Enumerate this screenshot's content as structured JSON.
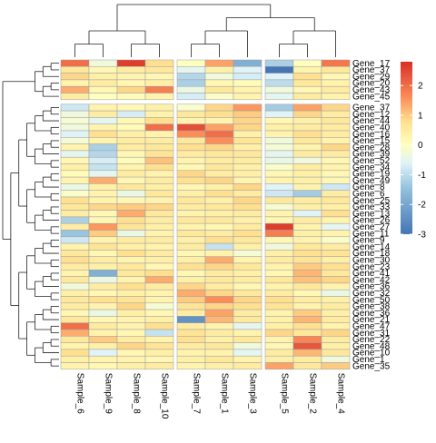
{
  "chart_data": {
    "type": "heatmap",
    "columns": [
      "Sample_6",
      "Sample_9",
      "Sample_8",
      "Sample_10",
      "Sample_7",
      "Sample_1",
      "Sample_3",
      "Sample_5",
      "Sample_2",
      "Sample_4"
    ],
    "column_groups": [
      1,
      1,
      1,
      1,
      2,
      2,
      2,
      3,
      3,
      3
    ],
    "rows": [
      "Gene_17",
      "Gene_37",
      "Gene_29",
      "Gene_20",
      "Gene_43",
      "Gene_45",
      "Gene_37",
      "Gene_12",
      "Gene_44",
      "Gene_40",
      "Gene_16",
      "Gene_15",
      "Gene_28",
      "Gene_39",
      "Gene_52",
      "Gene_34",
      "Gene_19",
      "Gene_49",
      "Gene_8",
      "Gene_6",
      "Gene_25",
      "Gene_33",
      "Gene_13",
      "Gene_26",
      "Gene_27",
      "Gene_11",
      "Gene_9",
      "Gene_14",
      "Gene_18",
      "Gene_30",
      "Gene_23",
      "Gene_41",
      "Gene_42",
      "Gene_36",
      "Gene_32",
      "Gene_50",
      "Gene_38",
      "Gene_36",
      "Gene_21",
      "Gene_47",
      "Gene_31",
      "Gene_22",
      "Gene_48",
      "Gene_10",
      "Gene_1",
      "Gene_35"
    ],
    "row_group_split_after": 6,
    "values": [
      [
        2.0,
        -0.3,
        2.6,
        0.8,
        0.0,
        1.4,
        -1.8,
        -1.2,
        0.0,
        1.9
      ],
      [
        0.6,
        0.2,
        0.5,
        0.6,
        -0.5,
        0.4,
        -0.6,
        -3.0,
        0.3,
        0.6
      ],
      [
        0.9,
        0.4,
        0.3,
        0.2,
        -1.1,
        -0.3,
        -0.7,
        -0.6,
        0.8,
        0.2
      ],
      [
        0.3,
        0.5,
        0.2,
        0.4,
        -1.2,
        0.2,
        0.1,
        -1.0,
        0.6,
        0.3
      ],
      [
        1.3,
        0.2,
        0.9,
        1.8,
        -0.4,
        0.6,
        0.3,
        -0.3,
        0.2,
        0.5
      ],
      [
        0.5,
        0.0,
        0.1,
        0.3,
        -0.7,
        -0.1,
        0.3,
        -0.5,
        0.5,
        0.3
      ],
      [
        -0.8,
        0.3,
        0.2,
        0.4,
        -0.1,
        0.9,
        1.5,
        -1.3,
        1.4,
        0.9
      ],
      [
        -0.3,
        0.5,
        -0.7,
        0.3,
        0.6,
        0.8,
        1.0,
        -0.6,
        0.9,
        0.5
      ],
      [
        -0.2,
        -0.5,
        0.2,
        0.8,
        0.3,
        0.3,
        0.9,
        0.2,
        0.4,
        0.6
      ],
      [
        -0.3,
        0.3,
        0.1,
        2.0,
        2.4,
        1.4,
        0.9,
        0.4,
        0.5,
        0.5
      ],
      [
        -0.6,
        0.8,
        0.4,
        0.3,
        1.6,
        2.0,
        0.4,
        0.3,
        0.8,
        0.5
      ],
      [
        -0.2,
        0.3,
        0.5,
        0.5,
        0.6,
        1.6,
        0.7,
        -0.3,
        0.6,
        0.3
      ],
      [
        0.3,
        -1.2,
        0.5,
        0.6,
        0.8,
        0.9,
        0.4,
        -0.2,
        0.3,
        0.9
      ],
      [
        -0.5,
        -1.1,
        0.2,
        0.7,
        0.5,
        0.6,
        0.6,
        -0.5,
        0.5,
        0.5
      ],
      [
        0.2,
        -0.7,
        0.1,
        1.1,
        0.3,
        0.5,
        0.5,
        -0.4,
        -0.3,
        0.2
      ],
      [
        0.4,
        -0.9,
        0.3,
        0.8,
        0.2,
        0.6,
        0.4,
        -0.1,
        0.5,
        0.3
      ],
      [
        0.1,
        -0.5,
        0.5,
        0.3,
        0.9,
        0.5,
        0.4,
        0.2,
        0.4,
        0.2
      ],
      [
        0.3,
        1.3,
        0.2,
        0.5,
        0.8,
        0.9,
        0.3,
        0.3,
        0.4,
        0.2
      ],
      [
        -0.4,
        0.4,
        0.6,
        0.4,
        0.2,
        0.4,
        0.9,
        -0.6,
        0.3,
        -0.8
      ],
      [
        -0.1,
        0.3,
        -0.4,
        0.6,
        0.4,
        0.8,
        0.5,
        -0.8,
        -1.3,
        0.5
      ],
      [
        0.8,
        0.3,
        0.2,
        0.3,
        0.6,
        0.4,
        0.9,
        0.6,
        0.5,
        0.6
      ],
      [
        0.6,
        0.9,
        1.0,
        0.9,
        0.5,
        0.6,
        0.8,
        -0.2,
        0.4,
        0.4
      ],
      [
        0.5,
        0.2,
        1.3,
        0.6,
        0.3,
        0.4,
        0.5,
        0.3,
        -0.6,
        0.8
      ],
      [
        -1.2,
        0.2,
        0.8,
        0.5,
        0.6,
        0.6,
        0.4,
        0.2,
        0.5,
        0.3
      ],
      [
        0.5,
        1.5,
        0.7,
        0.4,
        0.3,
        0.2,
        0.5,
        2.6,
        0.3,
        -0.5
      ],
      [
        -1.4,
        1.0,
        -0.4,
        0.3,
        0.6,
        0.5,
        0.8,
        1.8,
        0.4,
        0.3
      ],
      [
        -0.8,
        0.3,
        0.5,
        0.5,
        0.4,
        0.8,
        0.6,
        0.2,
        0.3,
        -0.1
      ],
      [
        0.3,
        0.7,
        0.4,
        0.3,
        0.5,
        -0.9,
        0.4,
        -0.3,
        0.6,
        0.5
      ],
      [
        0.6,
        0.2,
        0.8,
        0.5,
        0.2,
        0.3,
        -0.2,
        0.4,
        0.8,
        0.7
      ],
      [
        0.8,
        0.5,
        0.3,
        0.4,
        0.4,
        1.3,
        0.3,
        0.5,
        0.7,
        0.4
      ],
      [
        0.5,
        0.4,
        0.6,
        0.2,
        0.8,
        0.9,
        0.6,
        0.3,
        1.0,
        0.8
      ],
      [
        0.3,
        -1.8,
        0.6,
        0.8,
        0.2,
        0.5,
        0.4,
        0.2,
        1.2,
        0.6
      ],
      [
        0.6,
        -0.4,
        0.3,
        1.3,
        0.4,
        0.6,
        0.5,
        0.6,
        1.1,
        0.9
      ],
      [
        -0.3,
        0.5,
        0.8,
        0.5,
        0.9,
        0.5,
        0.2,
        0.3,
        0.6,
        0.3
      ],
      [
        0.4,
        0.2,
        0.4,
        0.3,
        1.3,
        0.9,
        0.6,
        0.5,
        0.2,
        -0.4
      ],
      [
        0.6,
        0.8,
        0.7,
        0.3,
        1.0,
        1.6,
        0.9,
        0.8,
        0.5,
        0.4
      ],
      [
        0.5,
        0.3,
        0.9,
        -0.2,
        0.7,
        0.9,
        0.8,
        0.7,
        0.3,
        0.5
      ],
      [
        0.2,
        -0.4,
        0.4,
        0.2,
        0.5,
        1.4,
        0.5,
        0.3,
        1.0,
        0.4
      ],
      [
        0.6,
        0.2,
        0.3,
        0.4,
        -2.4,
        1.2,
        0.6,
        0.4,
        1.2,
        0.5
      ],
      [
        2.0,
        0.5,
        0.3,
        0.8,
        0.5,
        0.3,
        -0.5,
        0.4,
        0.8,
        0.3
      ],
      [
        1.3,
        0.3,
        0.2,
        -0.9,
        0.7,
        0.5,
        0.3,
        0.9,
        0.6,
        0.9
      ],
      [
        0.6,
        1.0,
        0.5,
        0.3,
        0.8,
        0.4,
        0.6,
        0.3,
        1.7,
        0.5
      ],
      [
        0.3,
        0.4,
        0.9,
        0.7,
        0.5,
        0.6,
        -0.3,
        0.2,
        2.3,
        0.4
      ],
      [
        0.8,
        -0.6,
        0.2,
        0.4,
        0.3,
        0.3,
        -0.5,
        0.5,
        1.2,
        0.6
      ],
      [
        0.4,
        0.3,
        0.3,
        0.2,
        0.4,
        0.6,
        0.3,
        0.4,
        0.5,
        -0.3
      ],
      [
        0.3,
        0.2,
        0.4,
        0.5,
        0.3,
        0.4,
        0.5,
        1.4,
        0.6,
        1.0
      ]
    ],
    "color_scale": {
      "min": -3,
      "max": 2.8,
      "stops": [
        {
          "value": -3,
          "color": "#4575b4"
        },
        {
          "value": -1.5,
          "color": "#91bfdb"
        },
        {
          "value": -0.6,
          "color": "#e0f3f8"
        },
        {
          "value": 0,
          "color": "#ffffbf"
        },
        {
          "value": 0.8,
          "color": "#fee090"
        },
        {
          "value": 1.6,
          "color": "#fc8d59"
        },
        {
          "value": 2.8,
          "color": "#d73027"
        }
      ]
    },
    "legend": {
      "ticks": [
        2,
        1,
        0,
        -1,
        -2,
        -3
      ],
      "placement": "right"
    }
  }
}
